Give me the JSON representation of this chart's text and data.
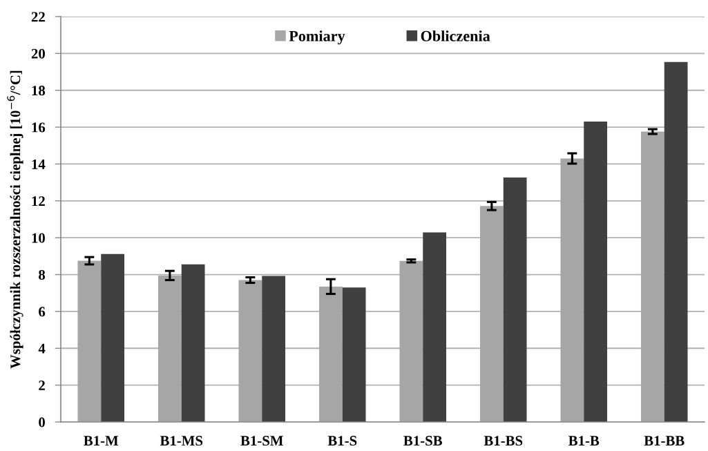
{
  "chart_data": {
    "type": "bar",
    "ylabel": "Współczynnik rozszerzalności cieplnej [10$^{−6}$/°C]",
    "categories": [
      "B1-M",
      "B1-MS",
      "B1-SM",
      "B1-S",
      "B1-SB",
      "B1-BS",
      "B1-B",
      "B1-BB"
    ],
    "series": [
      {
        "name": "Pomiary",
        "color": "#a6a6a6",
        "values": [
          8.75,
          7.95,
          7.7,
          7.35,
          8.74,
          11.72,
          14.3,
          15.76
        ],
        "errors": [
          0.2,
          0.25,
          0.15,
          0.4,
          0.08,
          0.22,
          0.28,
          0.13
        ]
      },
      {
        "name": "Obliczenia",
        "color": "#404040",
        "values": [
          9.12,
          8.55,
          7.93,
          7.3,
          10.29,
          13.27,
          16.3,
          19.54
        ]
      }
    ],
    "ylim": [
      0,
      22
    ],
    "yticks": [
      0,
      2,
      4,
      6,
      8,
      10,
      12,
      14,
      16,
      18,
      20,
      22
    ],
    "grid": "y",
    "legend": "top"
  }
}
